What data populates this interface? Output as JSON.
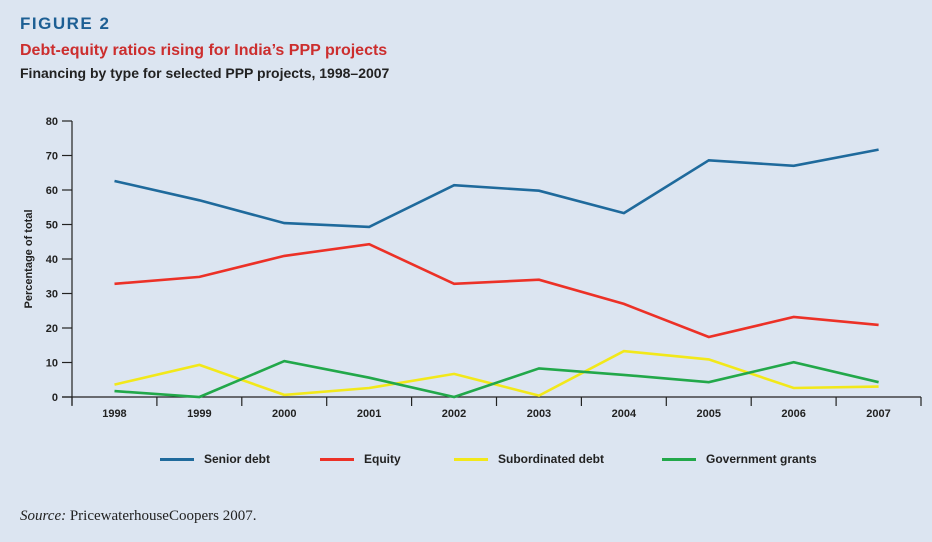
{
  "figure": {
    "label": "FIGURE 2",
    "title": "Debt-equity ratios rising for India’s PPP projects",
    "subtitle": "Financing by type for selected PPP projects, 1998–2007"
  },
  "source": {
    "prefix": "Source:",
    "text": " PricewaterhouseCoopers 2007."
  },
  "chart_data": {
    "type": "line",
    "title": "Debt-equity ratios rising for India’s PPP projects",
    "subtitle": "Financing by type for selected PPP projects, 1998–2007",
    "xlabel": "",
    "ylabel": "Percentage of total",
    "x": [
      "1998",
      "1999",
      "2000",
      "2001",
      "2002",
      "2003",
      "2004",
      "2005",
      "2006",
      "2007"
    ],
    "ylim": [
      0,
      80
    ],
    "yticks": [
      0,
      10,
      20,
      30,
      40,
      50,
      60,
      70,
      80
    ],
    "grid": false,
    "legend_position": "bottom",
    "series": [
      {
        "name": "Senior debt",
        "color": "#1f6a9c",
        "values": [
          62.6,
          57.0,
          50.4,
          49.3,
          61.4,
          59.8,
          53.3,
          68.6,
          67.0,
          71.7
        ]
      },
      {
        "name": "Equity",
        "color": "#ec3127",
        "values": [
          32.8,
          34.8,
          40.9,
          44.3,
          32.8,
          34.0,
          27.0,
          17.4,
          23.2,
          20.9
        ]
      },
      {
        "name": "Subordinated debt",
        "color": "#f2e81a",
        "values": [
          3.6,
          9.3,
          0.6,
          2.6,
          6.7,
          0.4,
          13.3,
          10.9,
          2.6,
          3.0
        ]
      },
      {
        "name": "Government grants",
        "color": "#22a84a",
        "values": [
          1.7,
          0.0,
          10.4,
          5.6,
          0.0,
          8.3,
          6.4,
          4.3,
          10.1,
          4.3
        ]
      }
    ]
  }
}
